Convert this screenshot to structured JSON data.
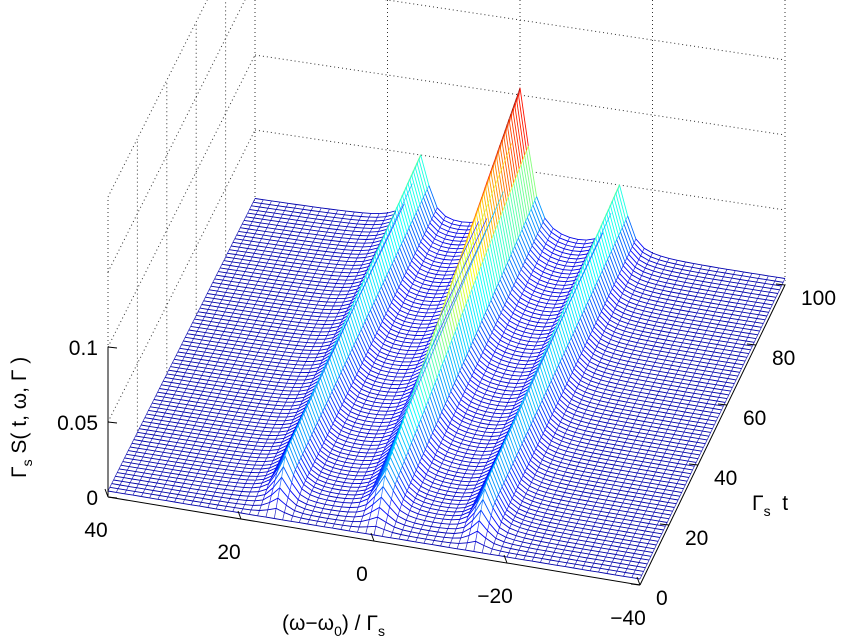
{
  "chart_data": {
    "type": "surface-mesh",
    "title": "",
    "xlabel": {
      "main": "(ω−ω",
      "sub0": "0",
      "mid": ") / Γ",
      "sub1": "s"
    },
    "ylabel": {
      "main": "Γ",
      "sub": "s",
      "rest": "  t"
    },
    "zlabel": {
      "main": "Γ",
      "sub": "s",
      "rest": " S( t, ω, Γ )"
    },
    "x_axis": {
      "label_desc": "(omega - omega_0) / Gamma_s",
      "range": [
        -40,
        40
      ],
      "ticks": [
        "40",
        "20",
        "0",
        "−20",
        "−40"
      ],
      "tick_values": [
        40,
        20,
        0,
        -20,
        -40
      ]
    },
    "t_axis": {
      "range": [
        0,
        100
      ],
      "ticks": [
        "0",
        "20",
        "40",
        "60",
        "80",
        "100"
      ],
      "tick_values": [
        0,
        20,
        40,
        60,
        80,
        100
      ]
    },
    "z_axis": {
      "range": [
        0,
        0.1
      ],
      "ticks": [
        "0",
        "0.05",
        "0.1"
      ],
      "tick_values": [
        0,
        0.05,
        0.1
      ]
    },
    "grid": true,
    "colormap": "jet",
    "surface": {
      "description_of_values": "spectrum with central peak at x=0 and two side peaks at x=±15",
      "center_peak_x": 0,
      "side_peak_x": [
        15,
        -15
      ],
      "peak_value_t100": 0.1,
      "side_peak_value": 0.05
    }
  }
}
